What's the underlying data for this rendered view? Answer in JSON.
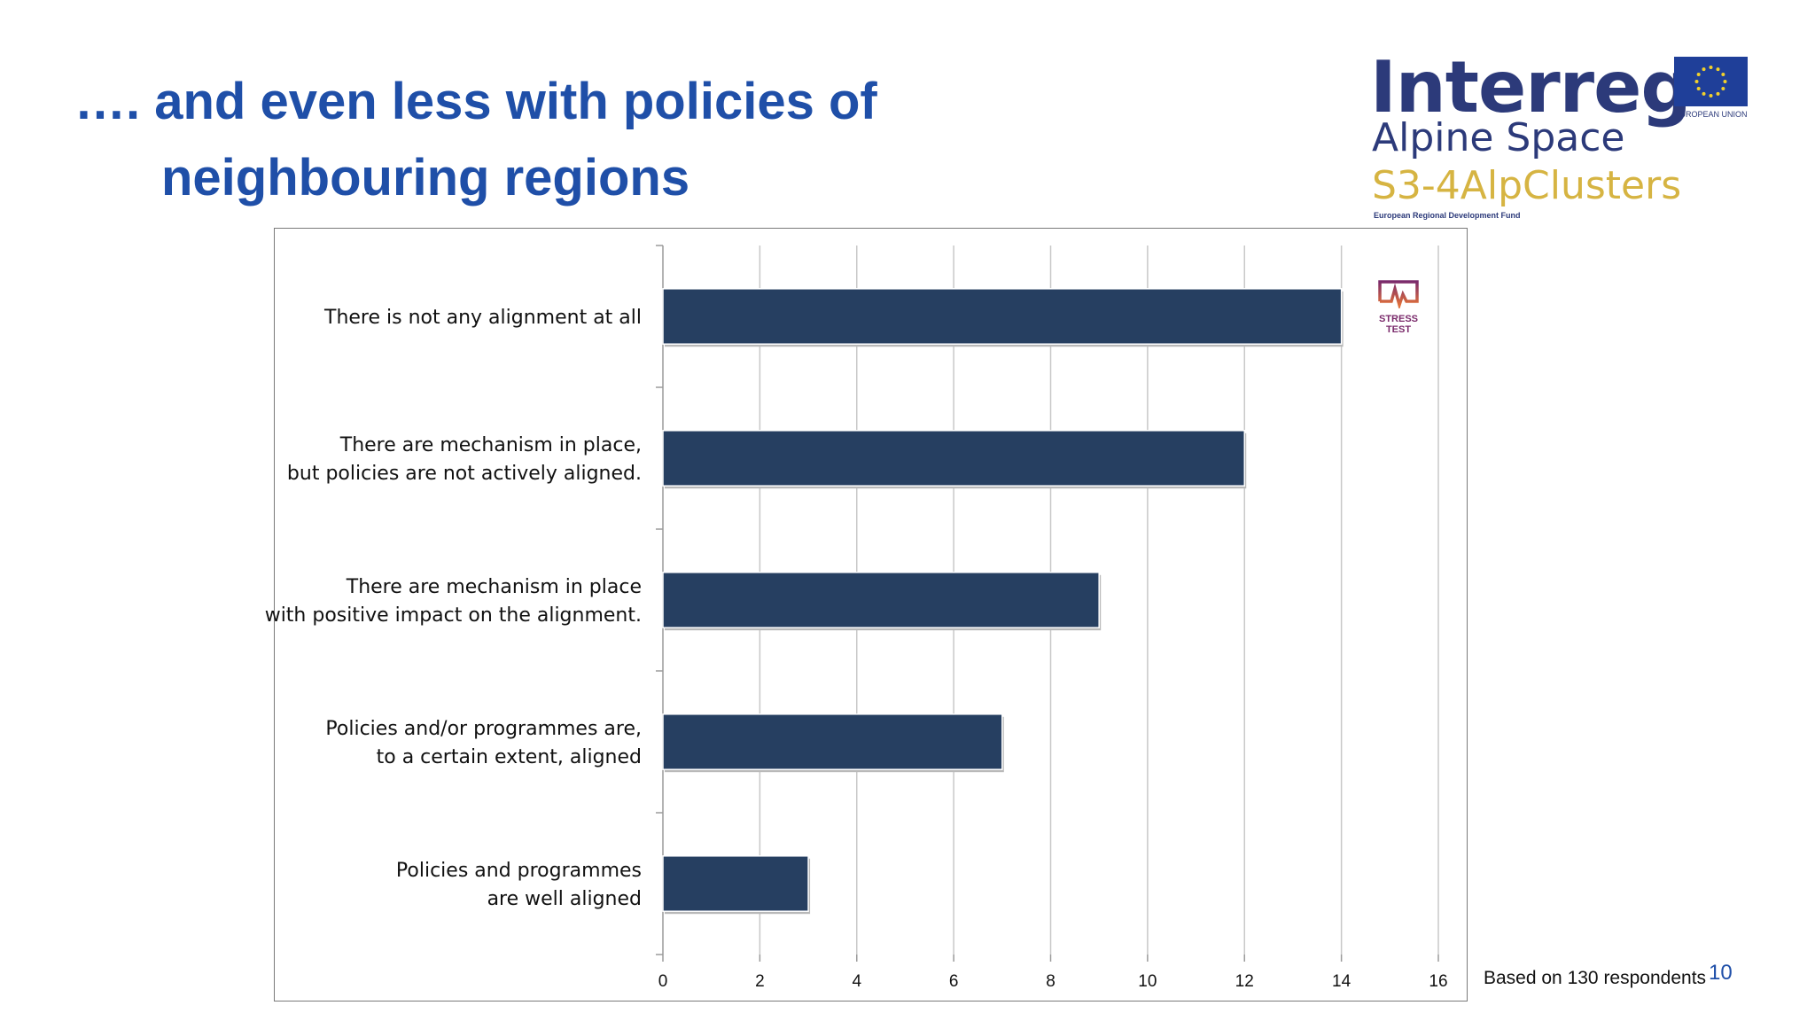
{
  "slide": {
    "title_line1": "…. and even less with policies of",
    "title_line2": "neighbouring regions",
    "logo_interreg": "Interreg",
    "logo_alpine": "Alpine Space",
    "logo_project": "S3-4AlpClusters",
    "logo_fund": "European Regional Development Fund",
    "eu_label": "EUROPEAN UNION",
    "stress_label_1": "STRESS",
    "stress_label_2": "TEST",
    "note": "Based on 130 respondents",
    "page_number": "10",
    "colors": {
      "title": "#1f4fa8",
      "bar": "#263f61",
      "logo_dark": "#2c3a7a",
      "logo_gold": "#d6b442"
    }
  },
  "chart_data": {
    "type": "bar",
    "orientation": "horizontal",
    "categories": [
      [
        "There is not any alignment at all"
      ],
      [
        "There are mechanism in place,",
        "but policies are not actively aligned."
      ],
      [
        "There are mechanism in place",
        "with positive impact on the alignment."
      ],
      [
        "Policies and/or programmes are,",
        "to a certain extent, aligned"
      ],
      [
        "Policies and programmes",
        "are well aligned"
      ]
    ],
    "values": [
      14,
      12,
      9,
      7,
      3
    ],
    "xlim": [
      0,
      16
    ],
    "xticks": [
      "0",
      "2",
      "4",
      "6",
      "8",
      "10",
      "12",
      "14",
      "16"
    ],
    "grid": true,
    "legend": "none",
    "title": "",
    "xlabel": "",
    "ylabel": ""
  }
}
